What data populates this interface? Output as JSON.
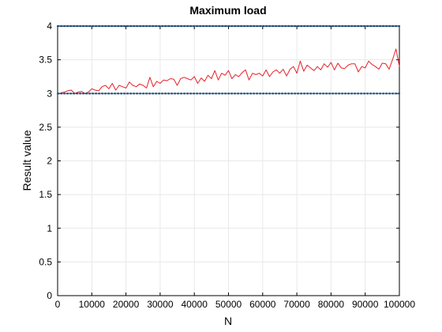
{
  "chart_data": {
    "type": "line",
    "title": "Maximum load",
    "xlabel": "N",
    "ylabel": "Result value",
    "xlim": [
      0,
      100000
    ],
    "ylim": [
      0,
      4
    ],
    "grid": true,
    "x_ticks": [
      0,
      10000,
      20000,
      30000,
      40000,
      50000,
      60000,
      70000,
      80000,
      90000,
      100000
    ],
    "x_tick_labels": [
      "0",
      "10000",
      "20000",
      "30000",
      "40000",
      "50000",
      "60000",
      "70000",
      "80000",
      "90000",
      "100000"
    ],
    "y_ticks": [
      0,
      0.5,
      1,
      1.5,
      2,
      2.5,
      3,
      3.5,
      4
    ],
    "y_tick_labels": [
      "0",
      "0.5",
      "1",
      "1.5",
      "2",
      "2.5",
      "3",
      "3.5",
      "4"
    ],
    "series": [
      {
        "color": "#e8202a",
        "style": "line",
        "x": [
          1000,
          2000,
          3000,
          4000,
          5000,
          6000,
          7000,
          8000,
          9000,
          10000,
          11000,
          12000,
          13000,
          14000,
          15000,
          16000,
          17000,
          18000,
          19000,
          20000,
          21000,
          22000,
          23000,
          24000,
          25000,
          26000,
          27000,
          28000,
          29000,
          30000,
          31000,
          32000,
          33000,
          34000,
          35000,
          36000,
          37000,
          38000,
          39000,
          40000,
          41000,
          42000,
          43000,
          44000,
          45000,
          46000,
          47000,
          48000,
          49000,
          50000,
          51000,
          52000,
          53000,
          54000,
          55000,
          56000,
          57000,
          58000,
          59000,
          60000,
          61000,
          62000,
          63000,
          64000,
          65000,
          66000,
          67000,
          68000,
          69000,
          70000,
          71000,
          72000,
          73000,
          74000,
          75000,
          76000,
          77000,
          78000,
          79000,
          80000,
          81000,
          82000,
          83000,
          84000,
          85000,
          86000,
          87000,
          88000,
          89000,
          90000,
          91000,
          92000,
          93000,
          94000,
          95000,
          96000,
          97000,
          98000,
          99000,
          100000
        ],
        "y": [
          3.01,
          3.02,
          3.04,
          3.05,
          3.0,
          3.02,
          3.03,
          3.0,
          3.02,
          3.07,
          3.05,
          3.04,
          3.1,
          3.12,
          3.07,
          3.15,
          3.05,
          3.12,
          3.1,
          3.08,
          3.17,
          3.12,
          3.1,
          3.14,
          3.12,
          3.08,
          3.24,
          3.1,
          3.18,
          3.15,
          3.2,
          3.19,
          3.22,
          3.21,
          3.12,
          3.22,
          3.24,
          3.22,
          3.2,
          3.25,
          3.15,
          3.23,
          3.18,
          3.27,
          3.22,
          3.34,
          3.2,
          3.3,
          3.27,
          3.34,
          3.22,
          3.28,
          3.25,
          3.31,
          3.35,
          3.2,
          3.3,
          3.28,
          3.3,
          3.26,
          3.35,
          3.25,
          3.32,
          3.35,
          3.3,
          3.36,
          3.26,
          3.36,
          3.4,
          3.3,
          3.48,
          3.33,
          3.42,
          3.38,
          3.34,
          3.4,
          3.35,
          3.44,
          3.39,
          3.46,
          3.35,
          3.45,
          3.38,
          3.37,
          3.42,
          3.44,
          3.44,
          3.32,
          3.4,
          3.38,
          3.48,
          3.43,
          3.4,
          3.36,
          3.45,
          3.44,
          3.36,
          3.5,
          3.66,
          3.4
        ]
      },
      {
        "color": "#1f4e79",
        "style": "dotted",
        "x": [
          0,
          100000
        ],
        "y": [
          4,
          4
        ]
      },
      {
        "color": "#1f4e79",
        "style": "dotted",
        "x": [
          0,
          100000
        ],
        "y": [
          3,
          3
        ]
      }
    ]
  }
}
